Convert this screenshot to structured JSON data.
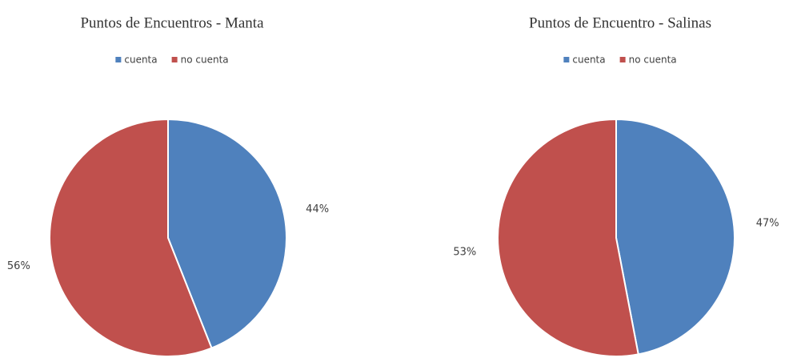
{
  "chart_data": [
    {
      "type": "pie",
      "title": "Puntos de Encuentros - Manta",
      "categories": [
        "cuenta",
        "no cuenta"
      ],
      "values": [
        44,
        56
      ],
      "value_labels": [
        "44%",
        "56%"
      ],
      "colors": [
        "#4f81bd",
        "#c0504d"
      ],
      "legend": "top"
    },
    {
      "type": "pie",
      "title": "Puntos de Encuentro - Salinas",
      "categories": [
        "cuenta",
        "no cuenta"
      ],
      "values": [
        47,
        53
      ],
      "value_labels": [
        "47%",
        "53%"
      ],
      "colors": [
        "#4f81bd",
        "#c0504d"
      ],
      "legend": "top"
    }
  ]
}
